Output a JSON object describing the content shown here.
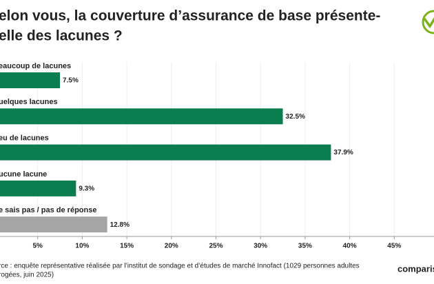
{
  "chart_data": {
    "type": "hbar",
    "title_lines": [
      "elon vous, la couverture d’assurance de base présente-",
      "elle des lacunes ?"
    ],
    "categories": [
      "eaucoup de lacunes",
      "uelques lacunes",
      "eu de lacunes",
      "ucune lacune",
      "e sais pas / pas de réponse"
    ],
    "values": [
      7.5,
      32.5,
      37.9,
      9.3,
      12.8
    ],
    "value_labels": [
      "7.5%",
      "32.5%",
      "37.9%",
      "9.3%",
      "12.8%"
    ],
    "colors": [
      "#0b7d4e",
      "#0b7d4e",
      "#0b7d4e",
      "#0b7d4e",
      "#a5a5a5"
    ],
    "xlim": [
      0,
      50
    ],
    "xticks": [
      {
        "value": 5,
        "label": "5%"
      },
      {
        "value": 10,
        "label": "10%"
      },
      {
        "value": 15,
        "label": "15%"
      },
      {
        "value": 20,
        "label": "20%"
      },
      {
        "value": 25,
        "label": "25%"
      },
      {
        "value": 30,
        "label": "30%"
      },
      {
        "value": 35,
        "label": "35%"
      },
      {
        "value": 40,
        "label": "40%"
      },
      {
        "value": 45,
        "label": "45%"
      }
    ],
    "source_lines": [
      "rce : enquête représentative réalisée par l’institut de sondage et d’études de marché Innofact (1029 personnes adultes",
      "rogées, juin 2025)"
    ],
    "brand": "comparis."
  }
}
